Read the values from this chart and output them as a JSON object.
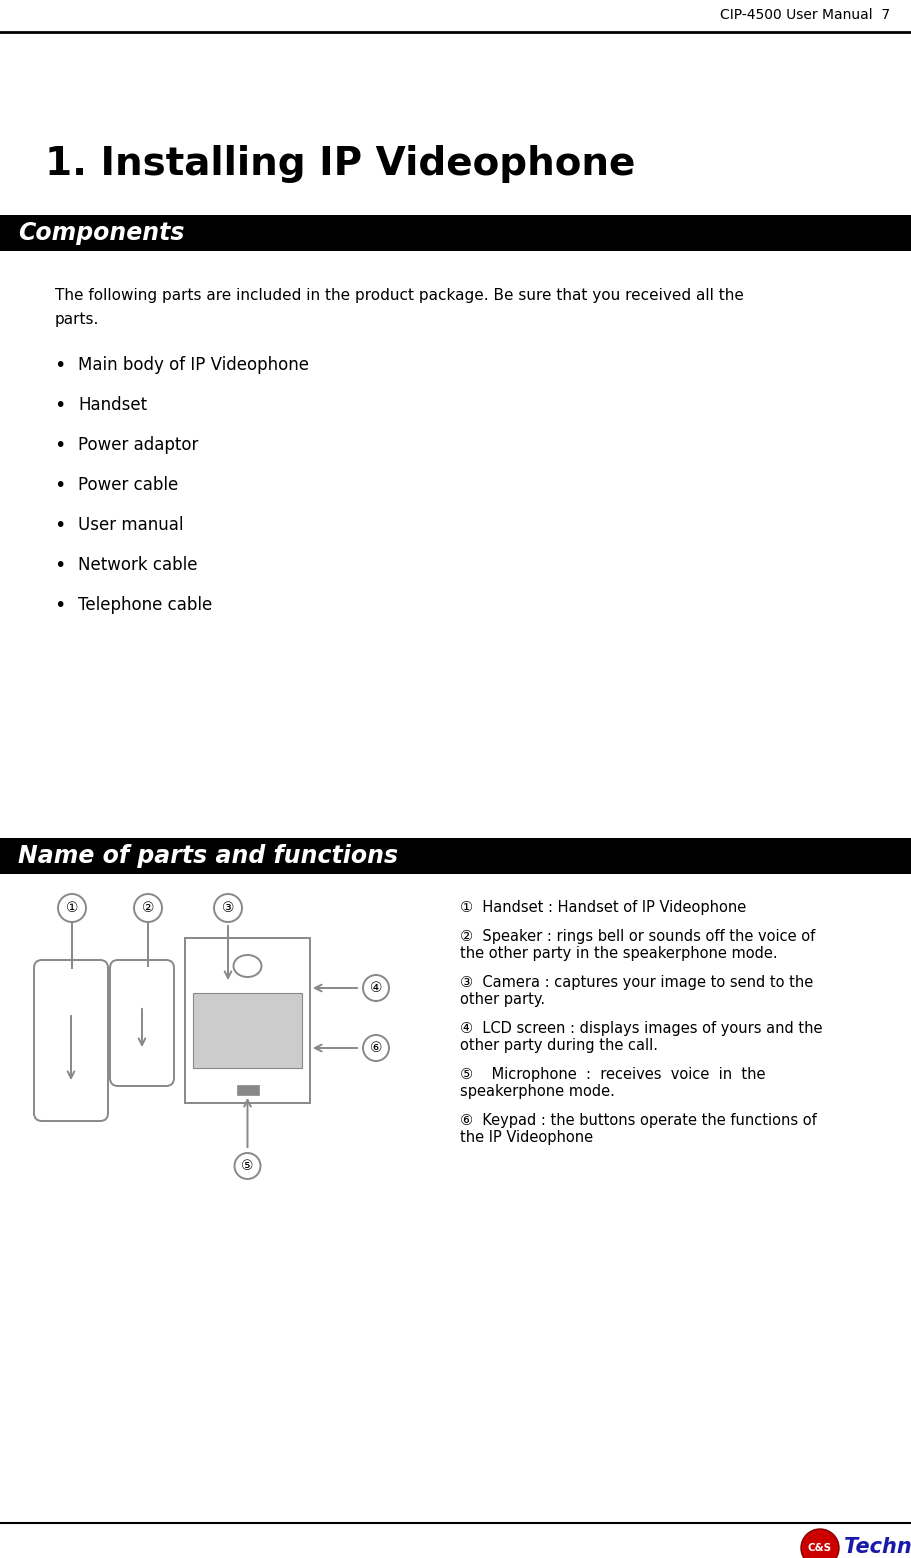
{
  "header_text": "CIP-4500 User Manual  7",
  "title": "1. Installing IP Videophone",
  "section1_header": "Components",
  "section2_header": "Name of parts and functions",
  "intro_line1": "The following parts are included in the product package. Be sure that you received all the",
  "intro_line2": "parts.",
  "bullet_items": [
    "Main body of IP Videophone",
    "Handset",
    "Power adaptor",
    "Power cable",
    "User manual",
    "Network cable",
    "Telephone cable"
  ],
  "desc1_line1": "①  Handset : Handset of IP Videophone",
  "desc2_line1": "②  Speaker : rings bell or sounds off the voice of",
  "desc2_line2": "the other party in the speakerphone mode.",
  "desc3_line1": "③  Camera : captures your image to send to the",
  "desc3_line2": "other party.",
  "desc4_line1": "④  LCD screen : displays images of yours and the",
  "desc4_line2": "other party during the call.",
  "desc5_line1": "⑤    Microphone  :  receives  voice  in  the",
  "desc5_line2": "speakerphone mode.",
  "desc6_line1": "⑥  Keypad : the buttons operate the functions of",
  "desc6_line2": "the IP Videophone",
  "bg_color": "#ffffff",
  "section_bar_color": "#000000",
  "section_text_color": "#ffffff",
  "body_text_color": "#000000",
  "title_color": "#000000",
  "diagram_color": "#888888",
  "logo_text": "Technology",
  "logo_circle_color": "#cc0000",
  "logo_text_color": "#1a1aaa"
}
